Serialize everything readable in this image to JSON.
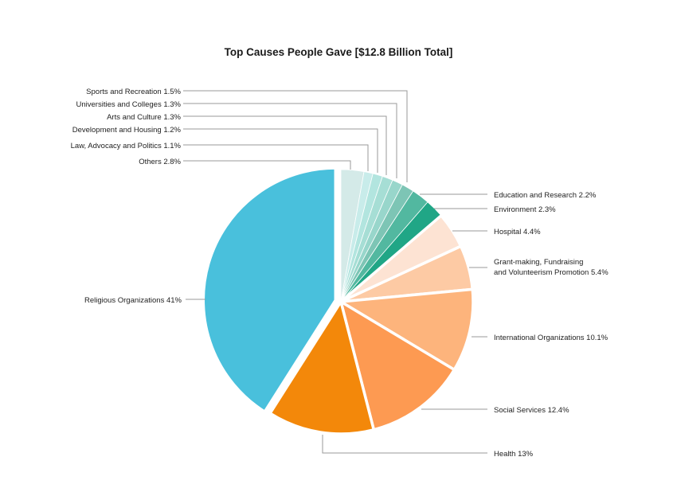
{
  "chart_data": {
    "type": "pie",
    "title": "Top Causes People Gave [$12.8 Billion Total]",
    "start_angle_deg": 0,
    "direction": "clockwise",
    "slices": [
      {
        "name": "Others",
        "value": 2.8,
        "label": "Others  2.8%",
        "color": "#d4eae8"
      },
      {
        "name": "Law, Advocacy and Politics",
        "value": 1.1,
        "label": "Law, Advocacy and Politics  1.1%",
        "color": "#c8ecea"
      },
      {
        "name": "Development and Housing",
        "value": 1.2,
        "label": "Development and Housing  1.2%",
        "color": "#b2e5df"
      },
      {
        "name": "Arts and Culture",
        "value": 1.3,
        "label": "Arts and Culture  1.3%",
        "color": "#a6ded5"
      },
      {
        "name": "Universities and Colleges",
        "value": 1.3,
        "label": "Universities and Colleges  1.3%",
        "color": "#98d6cb"
      },
      {
        "name": "Sports and Recreation",
        "value": 1.5,
        "label": "Sports and Recreation  1.5%",
        "color": "#7dc5b5"
      },
      {
        "name": "Education and Research",
        "value": 2.2,
        "label": "Education and Research  2.2%",
        "color": "#52b8a0"
      },
      {
        "name": "Environment",
        "value": 2.3,
        "label": "Environment  2.3%",
        "color": "#20a686"
      },
      {
        "name": "Hospital",
        "value": 4.4,
        "label": "Hospital  4.4%",
        "color": "#fde3d3"
      },
      {
        "name": "Grant-making, Fundraising and Volunteerism Promotion",
        "value": 5.4,
        "label_line1": "Grant-making, Fundraising",
        "label_line2": "and Volunteerism Promotion  5.4%",
        "color": "#fdcaa4"
      },
      {
        "name": "International Organizations",
        "value": 10.1,
        "label": "International Organizations  10.1%",
        "color": "#fdb47c"
      },
      {
        "name": "Social Services",
        "value": 12.4,
        "label": "Social Services  12.4%",
        "color": "#fd9a52"
      },
      {
        "name": "Health",
        "value": 13,
        "label": "Health  13%",
        "color": "#f3880a"
      },
      {
        "name": "Religious Organizations",
        "value": 41,
        "label": "Religious Organizations  41%",
        "color": "#49c0dc",
        "exploded": true
      }
    ]
  }
}
